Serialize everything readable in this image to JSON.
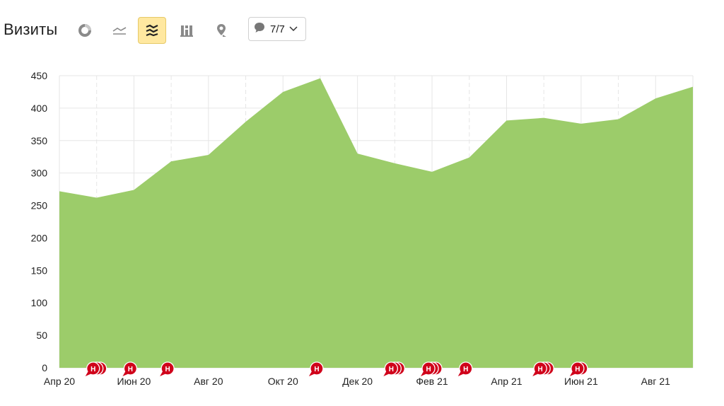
{
  "header": {
    "title": "Визиты",
    "view_buttons": [
      {
        "icon": "pie-chart-icon",
        "active": false
      },
      {
        "icon": "line-chart-icon",
        "active": false
      },
      {
        "icon": "area-chart-icon",
        "active": true
      },
      {
        "icon": "bar-chart-icon",
        "active": false
      },
      {
        "icon": "map-pin-icon",
        "active": false
      }
    ],
    "comments_filter": {
      "icon": "speech-bubble-icon",
      "value": "7/7"
    }
  },
  "colors": {
    "area": "#9ccc6a",
    "grid": "#e6e6e6",
    "marker": "#d0021b",
    "accent_bg": "#ffe8a0"
  },
  "chart_data": {
    "type": "area",
    "x": [
      "2020-04",
      "2020-05",
      "2020-06",
      "2020-07",
      "2020-08",
      "2020-09",
      "2020-10",
      "2020-11",
      "2020-12",
      "2021-01",
      "2021-02",
      "2021-03",
      "2021-04",
      "2021-05",
      "2021-06",
      "2021-07",
      "2021-08",
      "2021-09"
    ],
    "series": [
      {
        "values": [
          272,
          262,
          274,
          318,
          328,
          379,
          425,
          446,
          330,
          315,
          302,
          324,
          381,
          385,
          376,
          383,
          415,
          433
        ]
      }
    ],
    "x_tick_labels": [
      "Апр 20",
      "Июн 20",
      "Авг 20",
      "Окт 20",
      "Дек 20",
      "Фев 21",
      "Апр 21",
      "Июн 21",
      "Авг 21"
    ],
    "y_ticks": [
      0,
      50,
      100,
      150,
      200,
      250,
      300,
      350,
      400,
      450
    ],
    "ylim": [
      0,
      450
    ],
    "grid": true,
    "annotations": [
      {
        "x": "2020-05",
        "count": 3,
        "label": "Н"
      },
      {
        "x": "2020-06",
        "count": 1,
        "label": "Н"
      },
      {
        "x": "2020-07",
        "count": 1,
        "label": "Н"
      },
      {
        "x": "2020-11",
        "count": 1,
        "label": "Н"
      },
      {
        "x": "2021-01",
        "count": 3,
        "label": "Н"
      },
      {
        "x": "2021-02",
        "count": 3,
        "label": "Н"
      },
      {
        "x": "2021-03",
        "count": 1,
        "label": "Н"
      },
      {
        "x": "2021-05",
        "count": 3,
        "label": "Н"
      },
      {
        "x": "2021-06",
        "count": 2,
        "label": "Н"
      }
    ]
  }
}
